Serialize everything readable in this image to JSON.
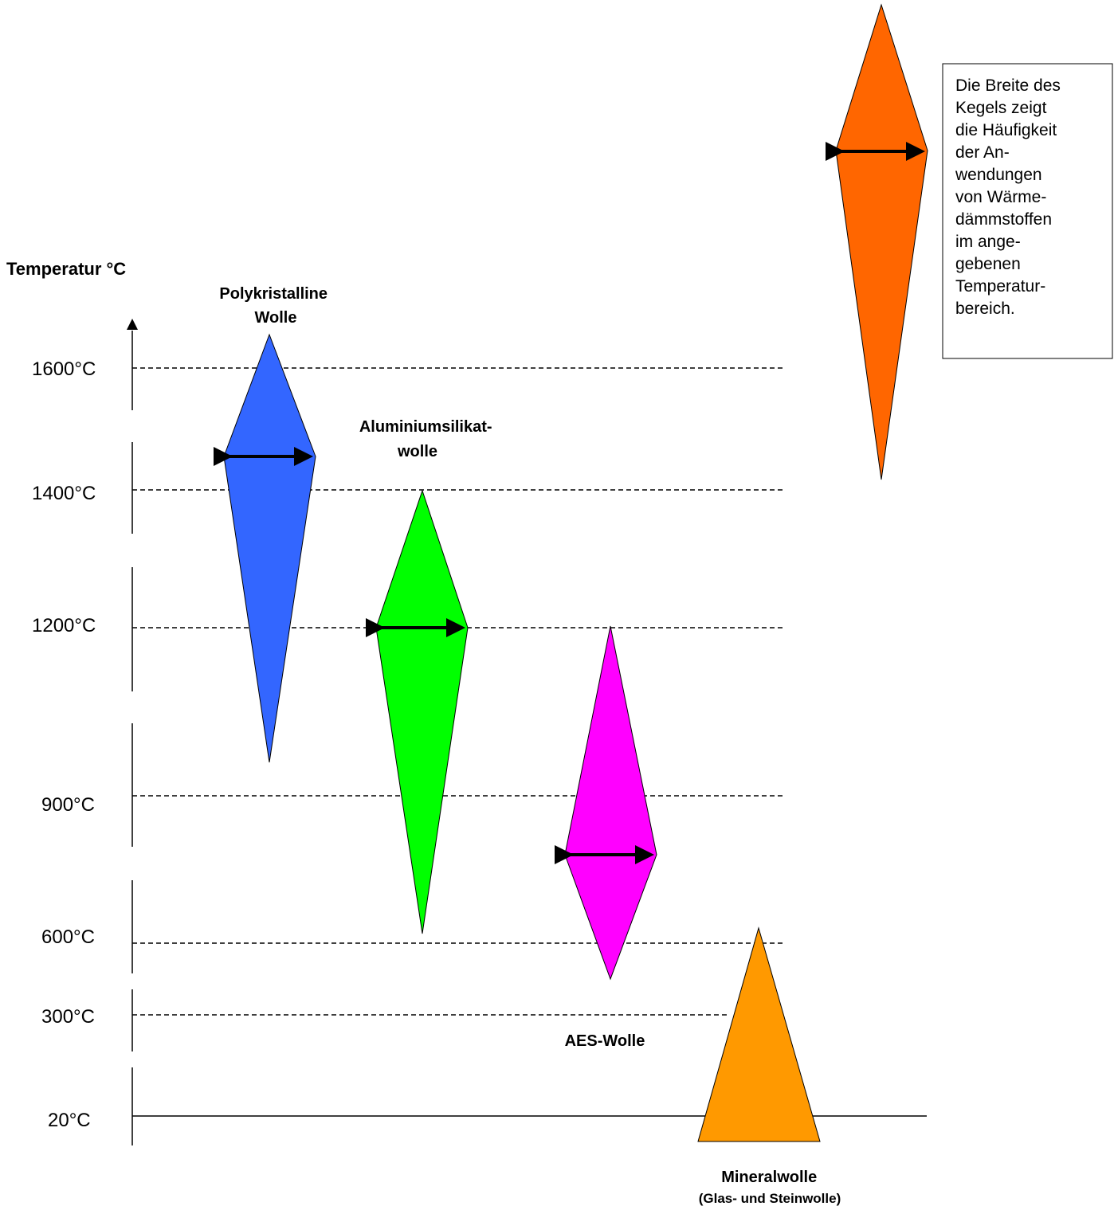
{
  "axis": {
    "title": "Temperatur °C",
    "ticks": [
      "1600°C",
      "1400°C",
      "1200°C",
      "900°C",
      "600°C",
      "300°C",
      "20°C"
    ]
  },
  "materials": [
    {
      "label_lines": [
        "Polykristalline",
        "Wolle"
      ],
      "color": "#3366FF"
    },
    {
      "label_lines": [
        "Aluminiumsilikat-",
        "wolle"
      ],
      "color": "#00FF00"
    },
    {
      "label_lines": [
        "AES-Wolle"
      ],
      "color": "#FF00FF"
    },
    {
      "label_lines": [
        "Mineralwolle",
        "(Glas- und Steinwolle)"
      ],
      "color": "#FF9900"
    }
  ],
  "legend": {
    "color": "#FF6600",
    "lines": [
      "Die Breite des",
      "Kegels zeigt",
      "die Häufigkeit",
      "der An-",
      "wendungen",
      "von Wärme-",
      "dämmstoffen",
      "im  ange-",
      "gebenen",
      "Temperatur-",
      "bereich."
    ]
  }
}
